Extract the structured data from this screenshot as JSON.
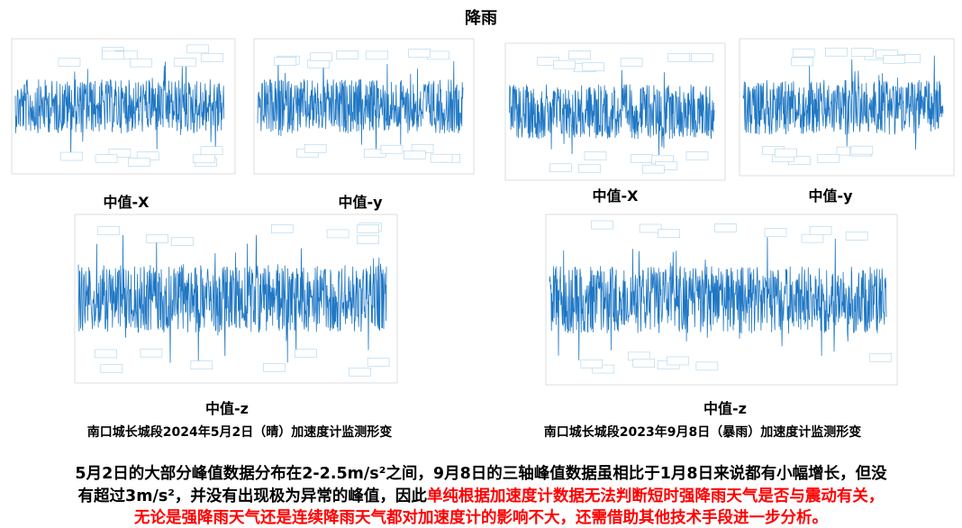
{
  "title": "降雨",
  "plots": [
    {
      "label": "中值-X"
    },
    {
      "label": "中值-y"
    },
    {
      "label": "中值-X"
    },
    {
      "label": "中值-y"
    },
    {
      "label": "中值-z"
    },
    {
      "label": "中值-z"
    }
  ],
  "captions": [
    "南口城长城段2024年5月2日（晴）加速度计监测形变",
    "南口城长城段2023年9月8日（暴雨）加速度计监测形变"
  ],
  "summary": {
    "line1": "5月2日的大部分峰值数据分布在2-2.5m/s²之间，9月8日的三轴峰值数据虽相比于1月8日来说都有小幅增长，但没",
    "line2": "有超过3m/s²，并没有出现极为异常的峰值，因此",
    "line2_highlight": "单纯根据加速度计数据无法判断短时强降雨天气是否与震动有关，",
    "line3_highlight": "无论是强降雨天气还是连续降雨天气都对加速度计的影响不大，还需借助其他技术手段进一步分析。"
  }
}
